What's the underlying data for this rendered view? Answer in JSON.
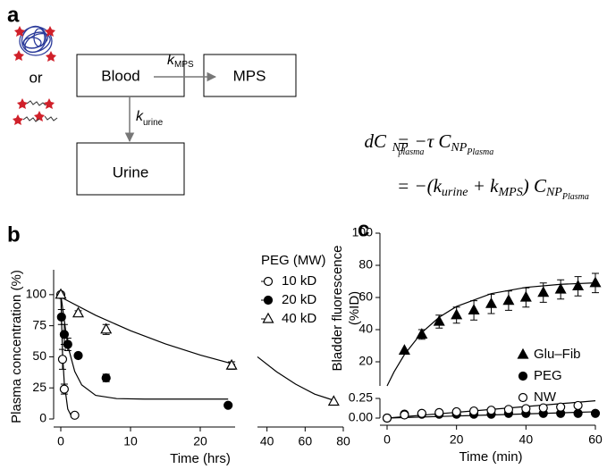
{
  "diagram": {
    "panel_label": "a",
    "or": "or",
    "boxes": [
      "Blood",
      "MPS",
      "Urine"
    ],
    "k_mps": [
      "k",
      "MPS"
    ],
    "k_urine": [
      "k",
      "urine"
    ],
    "equation": {
      "lhs": [
        "dC",
        "NP",
        "plasma"
      ],
      "rhs1": [
        "= −τ C",
        "NP",
        "Plasma"
      ],
      "rhs2": [
        "= −(",
        "k",
        "urine",
        " + ",
        "k",
        "MPS",
        ") C",
        "NP",
        "Plasma"
      ]
    }
  },
  "chart_data": [
    {
      "type": "scatter",
      "panel_label": "b",
      "ylabel": "Plasma concentration (%)",
      "xlabel": "Time (hrs)",
      "legend_title": "PEG (MW)",
      "xlim": [
        0,
        80
      ],
      "xbreak": [
        25,
        35
      ],
      "xticks": [
        0,
        10,
        20,
        40,
        60,
        80
      ],
      "ylim": [
        0,
        120
      ],
      "yticks": [
        0,
        25,
        50,
        75,
        100
      ],
      "series": [
        {
          "name": "10 kD",
          "marker": "circle-open",
          "color": "#000000",
          "x": [
            0,
            0.25,
            0.5,
            2
          ],
          "values": [
            100,
            48,
            24,
            3
          ],
          "errors": [
            null,
            8,
            4,
            null
          ],
          "fit_x": [
            0,
            0.25,
            0.5,
            1,
            1.5,
            2
          ],
          "fit_values": [
            100,
            53,
            29,
            8,
            2.4,
            0.7
          ]
        },
        {
          "name": "20 kD",
          "marker": "circle",
          "color": "#000000",
          "x": [
            0.1,
            0.5,
            1,
            2.5,
            6.5,
            24
          ],
          "values": [
            82,
            68,
            60,
            51,
            33,
            11
          ],
          "errors": [
            6,
            8,
            5,
            null,
            3,
            null
          ],
          "fit_x": [
            0,
            1,
            2,
            3,
            5,
            8,
            12,
            24
          ],
          "fit_values": [
            100,
            59.1,
            38.2,
            27.4,
            19,
            16.4,
            16,
            16
          ]
        },
        {
          "name": "40 kD",
          "marker": "triangle-open",
          "color": "#000000",
          "x": [
            0,
            2.5,
            6.5,
            24.5,
            75
          ],
          "values": [
            100,
            85,
            72,
            43,
            14
          ],
          "errors": [
            null,
            2,
            4,
            3,
            null
          ],
          "fit_x": [
            0,
            5,
            10,
            15,
            20,
            25,
            35,
            45,
            55,
            65,
            75
          ],
          "fit_values": [
            98,
            83.4,
            71,
            60.4,
            51.4,
            43.8,
            50,
            38,
            28,
            20,
            15
          ]
        }
      ]
    },
    {
      "type": "scatter",
      "panel_label": "c",
      "ylabel": [
        "Bladder fluorescence",
        "(%ID)"
      ],
      "xlabel": "Time (min)",
      "xlim": [
        0,
        60
      ],
      "xticks": [
        0,
        20,
        40,
        60
      ],
      "ylim": [
        5,
        100
      ],
      "yticks": [
        20,
        40,
        60,
        80,
        100
      ],
      "ylim_lower": [
        0,
        0.25
      ],
      "yticks_lower": [
        {
          "value": 0,
          "label": "0.00"
        },
        {
          "value": 0.25,
          "label": "0.25"
        }
      ],
      "series": [
        {
          "name": "Glu–Fib",
          "marker": "triangle",
          "color": "#000000",
          "x": [
            5,
            10,
            15,
            20,
            25,
            30,
            35,
            40,
            45,
            50,
            55,
            60
          ],
          "values": [
            27,
            37,
            45,
            49,
            52,
            56,
            58,
            60,
            63,
            65,
            67,
            69
          ],
          "errors": [
            null,
            3,
            4,
            5,
            6,
            6,
            6,
            6,
            6,
            6,
            6,
            6
          ],
          "fit_x": [
            0,
            2,
            5,
            10,
            15,
            20,
            30,
            40,
            50,
            60
          ],
          "fit_values": [
            5,
            13.7,
            24.5,
            38.2,
            47.7,
            54.4,
            62.4,
            66.3,
            68.2,
            69.1
          ]
        },
        {
          "name": "PEG",
          "marker": "circle",
          "color": "#000000",
          "axis": "lower",
          "x": [
            0,
            5,
            10,
            15,
            20,
            25,
            30,
            35,
            40,
            45,
            50,
            55,
            60
          ],
          "values": [
            0,
            0.05,
            0.05,
            0.05,
            0.05,
            0.05,
            0.05,
            0.06,
            0.06,
            0.06,
            0.06,
            0.06,
            0.06
          ],
          "fit_x": [
            0,
            60
          ],
          "fit_values": [
            0,
            0.08
          ]
        },
        {
          "name": "NW",
          "marker": "circle-open",
          "color": "#000000",
          "axis": "lower",
          "x": [
            0,
            5,
            10,
            15,
            20,
            25,
            30,
            35,
            40,
            45,
            50,
            55
          ],
          "values": [
            0,
            0.04,
            0.06,
            0.07,
            0.08,
            0.09,
            0.1,
            0.11,
            0.12,
            0.13,
            0.14,
            0.16
          ],
          "fit_x": [
            0,
            60
          ],
          "fit_values": [
            0,
            0.22
          ]
        }
      ]
    }
  ]
}
